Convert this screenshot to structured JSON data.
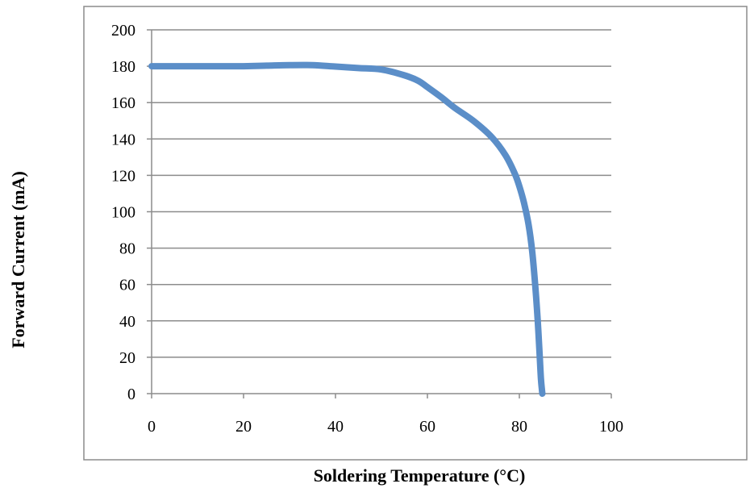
{
  "chart_data": {
    "type": "line",
    "title": "",
    "xlabel": "Soldering Temperature (°C)",
    "ylabel": "Forward Current (mA)",
    "xlim": [
      0,
      100
    ],
    "ylim": [
      0,
      200
    ],
    "xticks": [
      0,
      20,
      40,
      60,
      80,
      100
    ],
    "yticks": [
      0,
      20,
      40,
      60,
      80,
      100,
      120,
      140,
      160,
      180,
      200
    ],
    "grid": "horizontal",
    "legend": "none",
    "line_color": "#5b8ec8",
    "series": [
      {
        "x": [
          0,
          10,
          20,
          25,
          30,
          35,
          40,
          45,
          50,
          55,
          58,
          60,
          63,
          66,
          70,
          74,
          77,
          79,
          80,
          81,
          82,
          82.8,
          83.5,
          84,
          84.4,
          84.7,
          85
        ],
        "y": [
          180,
          180,
          180,
          180.3,
          180.6,
          180.6,
          179.8,
          179,
          178.2,
          175,
          172,
          168.5,
          163,
          157,
          150,
          141,
          131,
          121,
          114,
          105,
          93,
          78,
          58,
          40,
          22,
          8,
          0
        ]
      }
    ]
  }
}
